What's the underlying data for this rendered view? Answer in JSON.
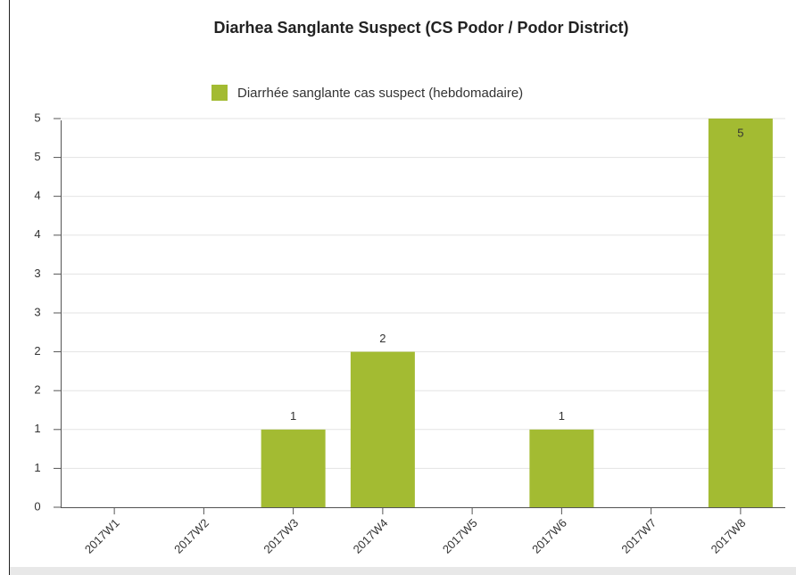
{
  "chart_data": {
    "type": "bar",
    "title": "Diarhea Sanglante Suspect (CS Podor / Podor District)",
    "categories": [
      "2017W1",
      "2017W2",
      "2017W3",
      "2017W4",
      "2017W5",
      "2017W6",
      "2017W7",
      "2017W8"
    ],
    "series": [
      {
        "name": "Diarrhée sanglante cas suspect (hebdomadaire)",
        "color": "#a3bb32",
        "values": [
          0,
          0,
          1,
          2,
          0,
          1,
          0,
          5
        ]
      }
    ],
    "ylim": [
      0,
      5
    ],
    "yticks": [
      0,
      {
        "value": 0.5,
        "label": "1"
      },
      1,
      {
        "value": 1.5,
        "label": "2"
      },
      2,
      {
        "value": 2.5,
        "label": "3"
      },
      3,
      {
        "value": 3.5,
        "label": "4"
      },
      4,
      {
        "value": 4.5,
        "label": "5"
      },
      5
    ],
    "grid": true
  }
}
